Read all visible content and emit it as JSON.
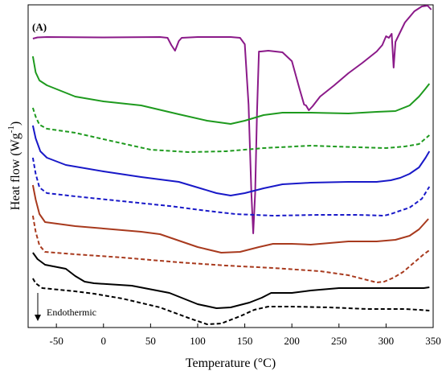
{
  "chart_data": {
    "type": "line",
    "panel_label": "(A)",
    "xlabel": "Temperature (°C)",
    "ylabel_base": "Heat flow (Wg",
    "ylabel_sup": "-1",
    "ylabel_end": ")",
    "xlim": [
      -80,
      350
    ],
    "xticks": [
      -50,
      0,
      50,
      100,
      150,
      200,
      250,
      300,
      350
    ],
    "xtick_labels": [
      "-50",
      "0",
      "50",
      "100",
      "150",
      "200",
      "250",
      "300",
      "350"
    ],
    "y_ticks": false,
    "annotation": "Endothermic",
    "series": [
      {
        "color": "#8b1a89",
        "dash": "solid",
        "points": [
          [
            -75,
            48
          ],
          [
            -70,
            46.5
          ],
          [
            -60,
            46
          ],
          [
            0,
            46.5
          ],
          [
            60,
            46
          ],
          [
            68,
            47
          ],
          [
            72,
            56
          ],
          [
            76,
            63
          ],
          [
            80,
            51
          ],
          [
            83,
            47
          ],
          [
            100,
            46
          ],
          [
            120,
            46
          ],
          [
            135,
            46
          ],
          [
            145,
            47
          ],
          [
            150,
            55
          ],
          [
            154,
            130
          ],
          [
            157,
            240
          ],
          [
            159,
            290
          ],
          [
            161,
            240
          ],
          [
            163,
            140
          ],
          [
            165,
            64
          ],
          [
            167,
            64
          ],
          [
            175,
            63
          ],
          [
            190,
            65
          ],
          [
            200,
            76
          ],
          [
            208,
            110
          ],
          [
            213,
            130
          ],
          [
            215,
            131
          ],
          [
            218,
            137
          ],
          [
            222,
            132
          ],
          [
            230,
            120
          ],
          [
            245,
            106
          ],
          [
            260,
            91
          ],
          [
            275,
            78
          ],
          [
            290,
            64
          ],
          [
            296,
            56
          ],
          [
            300,
            45
          ],
          [
            303,
            47
          ],
          [
            306,
            42
          ],
          [
            308,
            84
          ],
          [
            310,
            52
          ],
          [
            320,
            28
          ],
          [
            330,
            14
          ],
          [
            338,
            8
          ],
          [
            344,
            7
          ],
          [
            348,
            12
          ]
        ]
      },
      {
        "color": "#1e9a1e",
        "dash": "solid",
        "points": [
          [
            -75,
            70
          ],
          [
            -72,
            90
          ],
          [
            -68,
            100
          ],
          [
            -60,
            106
          ],
          [
            -45,
            113
          ],
          [
            -30,
            120
          ],
          [
            0,
            126
          ],
          [
            40,
            131
          ],
          [
            80,
            142
          ],
          [
            110,
            150
          ],
          [
            135,
            154
          ],
          [
            150,
            150
          ],
          [
            170,
            143
          ],
          [
            190,
            140
          ],
          [
            220,
            140
          ],
          [
            260,
            141
          ],
          [
            290,
            139
          ],
          [
            310,
            138
          ],
          [
            325,
            131
          ],
          [
            335,
            120
          ],
          [
            342,
            110
          ],
          [
            346,
            104
          ]
        ]
      },
      {
        "color": "#1e9a1e",
        "dash": "dashed",
        "points": [
          [
            -75,
            134
          ],
          [
            -72,
            145
          ],
          [
            -68,
            155
          ],
          [
            -60,
            160
          ],
          [
            -30,
            165
          ],
          [
            0,
            173
          ],
          [
            50,
            186
          ],
          [
            90,
            189
          ],
          [
            130,
            188
          ],
          [
            170,
            184
          ],
          [
            220,
            181
          ],
          [
            270,
            183
          ],
          [
            300,
            184
          ],
          [
            320,
            182
          ],
          [
            335,
            179
          ],
          [
            342,
            172
          ],
          [
            346,
            168
          ]
        ]
      },
      {
        "color": "#1919c8",
        "dash": "solid",
        "points": [
          [
            -75,
            156
          ],
          [
            -72,
            172
          ],
          [
            -67,
            188
          ],
          [
            -60,
            196
          ],
          [
            -40,
            205
          ],
          [
            0,
            213
          ],
          [
            40,
            220
          ],
          [
            80,
            226
          ],
          [
            100,
            233
          ],
          [
            120,
            240
          ],
          [
            135,
            243
          ],
          [
            150,
            240
          ],
          [
            170,
            234
          ],
          [
            190,
            229
          ],
          [
            220,
            227
          ],
          [
            260,
            226
          ],
          [
            290,
            226
          ],
          [
            305,
            224
          ],
          [
            315,
            221
          ],
          [
            325,
            216
          ],
          [
            335,
            208
          ],
          [
            342,
            196
          ],
          [
            346,
            188
          ]
        ]
      },
      {
        "color": "#1919c8",
        "dash": "dashed",
        "points": [
          [
            -75,
            196
          ],
          [
            -72,
            216
          ],
          [
            -68,
            233
          ],
          [
            -60,
            240
          ],
          [
            -30,
            244
          ],
          [
            20,
            250
          ],
          [
            70,
            256
          ],
          [
            110,
            262
          ],
          [
            140,
            266
          ],
          [
            180,
            268
          ],
          [
            230,
            267
          ],
          [
            270,
            267
          ],
          [
            298,
            268
          ],
          [
            305,
            266
          ],
          [
            312,
            263
          ],
          [
            325,
            258
          ],
          [
            338,
            247
          ],
          [
            346,
            232
          ]
        ]
      },
      {
        "color": "#a83a1e",
        "dash": "solid",
        "points": [
          [
            -75,
            230
          ],
          [
            -72,
            248
          ],
          [
            -68,
            266
          ],
          [
            -62,
            276
          ],
          [
            -30,
            281
          ],
          [
            0,
            284
          ],
          [
            40,
            288
          ],
          [
            60,
            291
          ],
          [
            80,
            299
          ],
          [
            100,
            307
          ],
          [
            125,
            314
          ],
          [
            145,
            313
          ],
          [
            165,
            307
          ],
          [
            180,
            303
          ],
          [
            200,
            303
          ],
          [
            220,
            304
          ],
          [
            240,
            302
          ],
          [
            260,
            300
          ],
          [
            290,
            300
          ],
          [
            310,
            298
          ],
          [
            325,
            293
          ],
          [
            335,
            285
          ],
          [
            345,
            272
          ]
        ]
      },
      {
        "color": "#a83a1e",
        "dash": "dashed",
        "points": [
          [
            -75,
            268
          ],
          [
            -72,
            288
          ],
          [
            -68,
            305
          ],
          [
            -62,
            313
          ],
          [
            -30,
            316
          ],
          [
            20,
            320
          ],
          [
            80,
            326
          ],
          [
            130,
            330
          ],
          [
            180,
            333
          ],
          [
            230,
            337
          ],
          [
            260,
            342
          ],
          [
            280,
            348
          ],
          [
            290,
            351
          ],
          [
            298,
            350
          ],
          [
            308,
            345
          ],
          [
            318,
            338
          ],
          [
            330,
            326
          ],
          [
            340,
            316
          ],
          [
            346,
            311
          ]
        ]
      },
      {
        "color": "#000000",
        "dash": "solid",
        "points": [
          [
            -75,
            314
          ],
          [
            -70,
            322
          ],
          [
            -62,
            329
          ],
          [
            -40,
            334
          ],
          [
            -30,
            343
          ],
          [
            -20,
            350
          ],
          [
            -10,
            352
          ],
          [
            30,
            355
          ],
          [
            70,
            364
          ],
          [
            100,
            378
          ],
          [
            120,
            383
          ],
          [
            135,
            382
          ],
          [
            155,
            376
          ],
          [
            168,
            370
          ],
          [
            178,
            364
          ],
          [
            200,
            364
          ],
          [
            220,
            361
          ],
          [
            250,
            358
          ],
          [
            290,
            358
          ],
          [
            320,
            358
          ],
          [
            340,
            358
          ],
          [
            346,
            357
          ]
        ]
      },
      {
        "color": "#000000",
        "dash": "dashed",
        "points": [
          [
            -75,
            346
          ],
          [
            -72,
            352
          ],
          [
            -65,
            358
          ],
          [
            -30,
            362
          ],
          [
            -10,
            365
          ],
          [
            20,
            371
          ],
          [
            60,
            382
          ],
          [
            90,
            395
          ],
          [
            110,
            403
          ],
          [
            125,
            402
          ],
          [
            145,
            393
          ],
          [
            160,
            385
          ],
          [
            175,
            381
          ],
          [
            200,
            381
          ],
          [
            240,
            382
          ],
          [
            280,
            384
          ],
          [
            320,
            384
          ],
          [
            335,
            385
          ],
          [
            346,
            386
          ]
        ]
      }
    ]
  }
}
